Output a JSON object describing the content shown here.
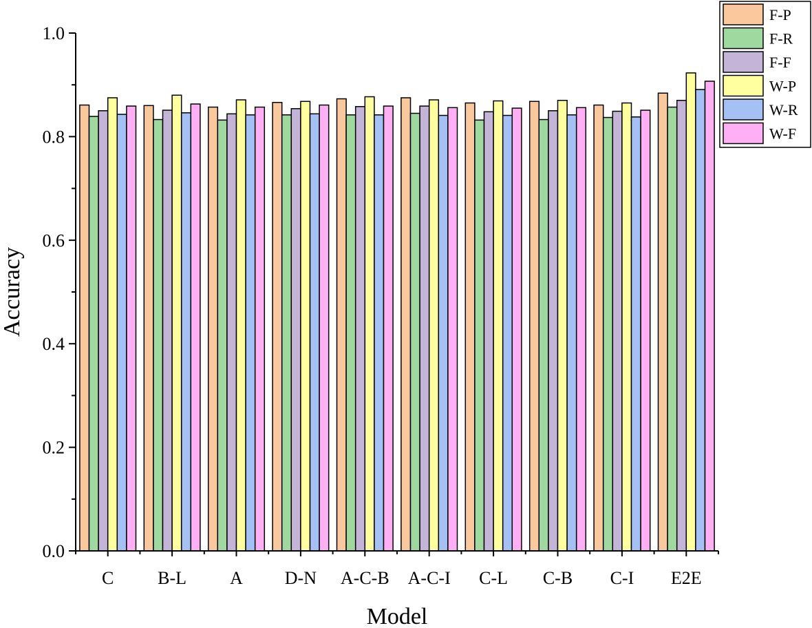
{
  "chart_data": {
    "type": "bar",
    "title": "",
    "xlabel": "Model",
    "ylabel": "Accuracy",
    "ylim": [
      0,
      1.0
    ],
    "yticks": [
      "0.0",
      "0.2",
      "0.4",
      "0.6",
      "0.8",
      "1.0"
    ],
    "legend_position": "top-right",
    "grid": false,
    "categories": [
      "C",
      "B-L",
      "A",
      "D-N",
      "A-C-B",
      "A-C-I",
      "C-L",
      "C-B",
      "C-I",
      "E2E"
    ],
    "series": [
      {
        "name": "F-P",
        "color": "#F9C89C",
        "values": [
          0.861,
          0.86,
          0.857,
          0.866,
          0.873,
          0.875,
          0.865,
          0.868,
          0.861,
          0.884
        ]
      },
      {
        "name": "F-R",
        "color": "#A0D9A0",
        "values": [
          0.839,
          0.833,
          0.832,
          0.842,
          0.842,
          0.845,
          0.832,
          0.833,
          0.837,
          0.857
        ]
      },
      {
        "name": "F-F",
        "color": "#C4B4D8",
        "values": [
          0.85,
          0.851,
          0.844,
          0.854,
          0.858,
          0.859,
          0.848,
          0.85,
          0.849,
          0.87
        ]
      },
      {
        "name": "W-P",
        "color": "#FFFFA0",
        "values": [
          0.875,
          0.88,
          0.871,
          0.868,
          0.877,
          0.871,
          0.869,
          0.87,
          0.865,
          0.923
        ]
      },
      {
        "name": "W-R",
        "color": "#A4C0F4",
        "values": [
          0.843,
          0.846,
          0.842,
          0.844,
          0.842,
          0.841,
          0.841,
          0.842,
          0.838,
          0.891
        ]
      },
      {
        "name": "W-F",
        "color": "#FFB0F4",
        "values": [
          0.859,
          0.863,
          0.857,
          0.861,
          0.859,
          0.856,
          0.855,
          0.856,
          0.851,
          0.907
        ]
      }
    ]
  }
}
